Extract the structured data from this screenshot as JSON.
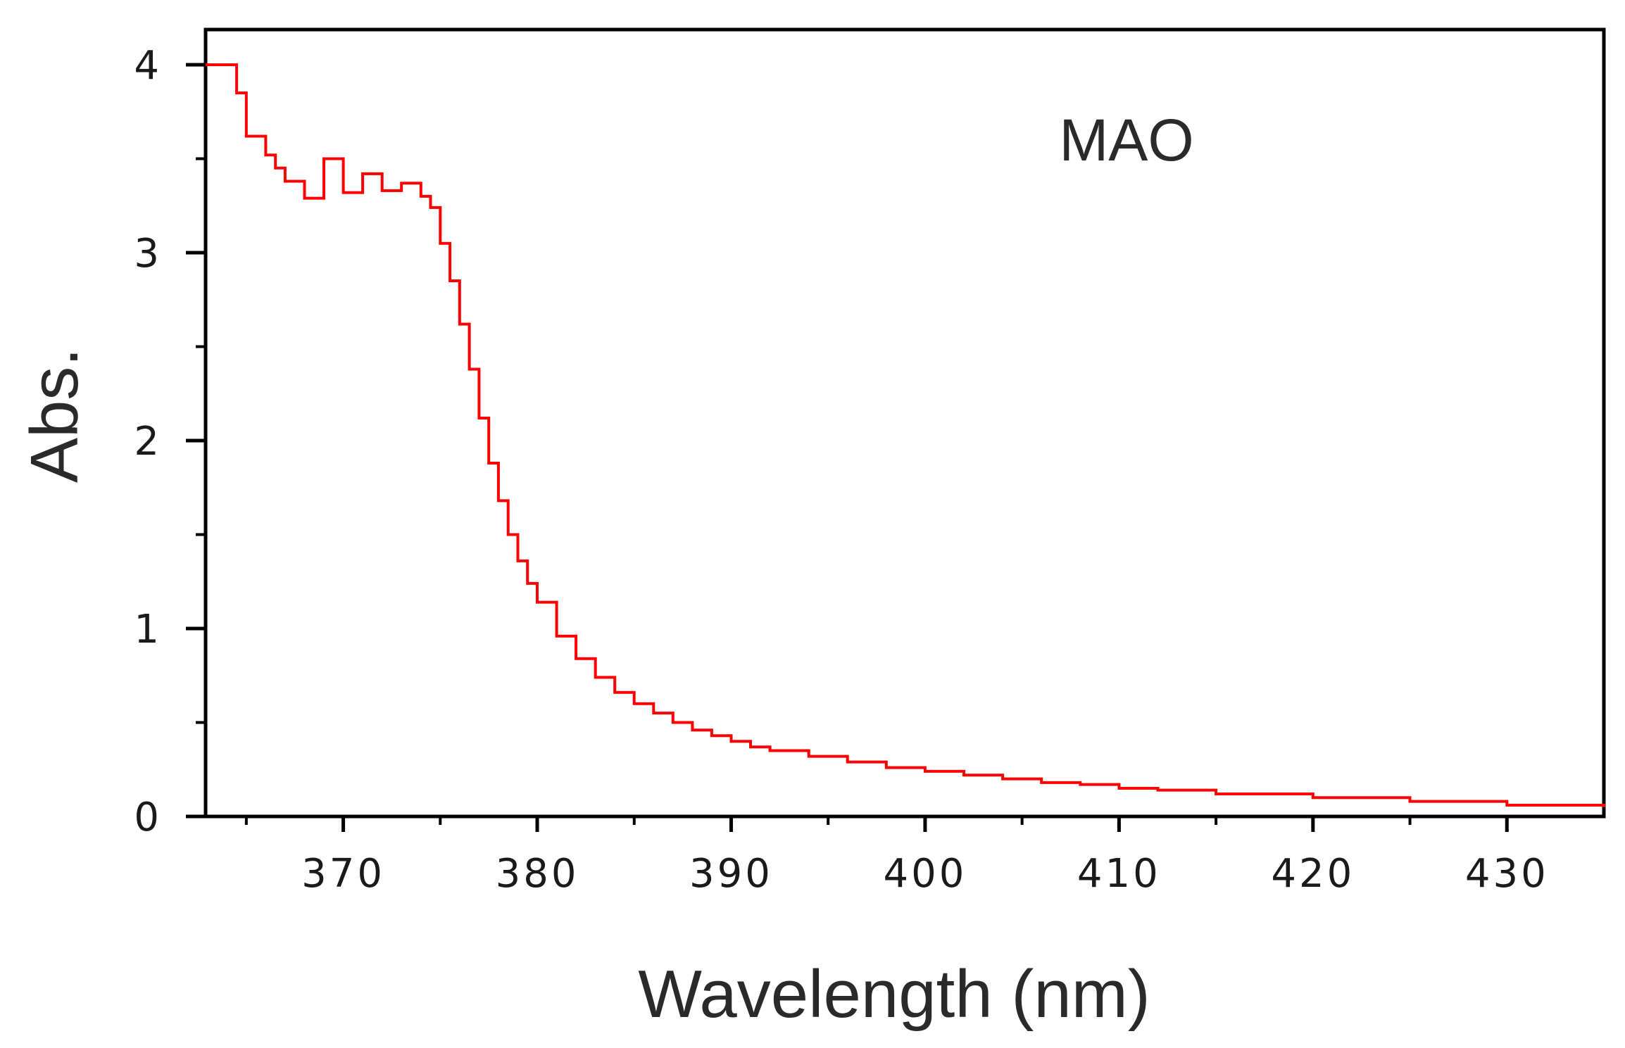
{
  "chart_data": {
    "type": "line",
    "title": "",
    "xlabel": "Wavelength (nm)",
    "ylabel": "Abs.",
    "xlim": [
      362.9,
      435
    ],
    "ylim": [
      0,
      4
    ],
    "xticks": [
      "370",
      "380",
      "390",
      "400",
      "410",
      "420",
      "430"
    ],
    "xtick_values": [
      370,
      380,
      390,
      400,
      410,
      420,
      430
    ],
    "yticks": [
      "0",
      "1",
      "2",
      "3",
      "4"
    ],
    "ytick_values": [
      0,
      1,
      2,
      3,
      4
    ],
    "annotation": "MAO",
    "grid": false,
    "series": [
      {
        "name": "MAO",
        "color": "#ff0000",
        "x": [
          362.9,
          364,
          364.5,
          365,
          366,
          366.5,
          367,
          368,
          369,
          370,
          371,
          372,
          373,
          374,
          374.5,
          375,
          375.5,
          376,
          376.5,
          377,
          377.5,
          378,
          378.5,
          379,
          379.5,
          380,
          381,
          382,
          383,
          384,
          385,
          386,
          387,
          388,
          389,
          390,
          391,
          392,
          394,
          396,
          398,
          400,
          402,
          404,
          406,
          408,
          410,
          412,
          415,
          420,
          425,
          430,
          435
        ],
        "y": [
          4.0,
          4.0,
          3.85,
          3.62,
          3.52,
          3.45,
          3.38,
          3.29,
          3.5,
          3.32,
          3.42,
          3.33,
          3.37,
          3.3,
          3.24,
          3.05,
          2.85,
          2.62,
          2.38,
          2.12,
          1.88,
          1.68,
          1.5,
          1.36,
          1.24,
          1.14,
          0.96,
          0.84,
          0.74,
          0.66,
          0.6,
          0.55,
          0.5,
          0.46,
          0.43,
          0.4,
          0.37,
          0.35,
          0.32,
          0.29,
          0.26,
          0.24,
          0.22,
          0.2,
          0.18,
          0.17,
          0.15,
          0.14,
          0.12,
          0.1,
          0.08,
          0.06,
          0.05
        ]
      }
    ]
  }
}
